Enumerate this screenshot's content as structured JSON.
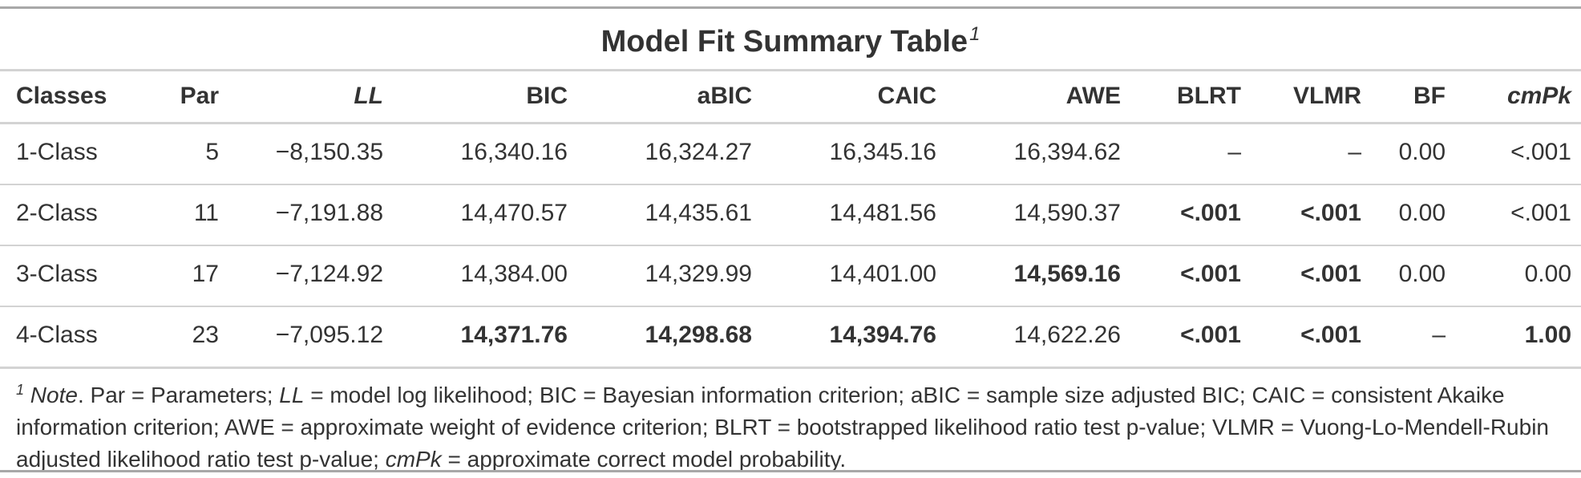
{
  "title": "Model Fit Summary Table",
  "title_footnote_mark": "1",
  "columns": [
    "Classes",
    "Par",
    "LL",
    "BIC",
    "aBIC",
    "CAIC",
    "AWE",
    "BLRT",
    "VLMR",
    "BF",
    "cmPk"
  ],
  "rows": [
    {
      "classes": "1-Class",
      "par": "5",
      "ll": "−8,150.35",
      "bic": "16,340.16",
      "abic": "16,324.27",
      "caic": "16,345.16",
      "awe": "16,394.62",
      "blrt": "–",
      "vlmr": "–",
      "bf": "0.00",
      "cmpk": "<.001"
    },
    {
      "classes": "2-Class",
      "par": "11",
      "ll": "−7,191.88",
      "bic": "14,470.57",
      "abic": "14,435.61",
      "caic": "14,481.56",
      "awe": "14,590.37",
      "blrt": "<.001",
      "vlmr": "<.001",
      "bf": "0.00",
      "cmpk": "<.001"
    },
    {
      "classes": "3-Class",
      "par": "17",
      "ll": "−7,124.92",
      "bic": "14,384.00",
      "abic": "14,329.99",
      "caic": "14,401.00",
      "awe": "14,569.16",
      "blrt": "<.001",
      "vlmr": "<.001",
      "bf": "0.00",
      "cmpk": "0.00"
    },
    {
      "classes": "4-Class",
      "par": "23",
      "ll": "−7,095.12",
      "bic": "14,371.76",
      "abic": "14,298.68",
      "caic": "14,394.76",
      "awe": "14,622.26",
      "blrt": "<.001",
      "vlmr": "<.001",
      "bf": "–",
      "cmpk": "1.00"
    }
  ],
  "note": {
    "mark": "1",
    "note_label": "Note",
    "p1": ". Par = Parameters; ",
    "ll_label": "LL",
    "p2": " = model log likelihood; BIC = Bayesian information criterion; aBIC = sample size adjusted BIC; CAIC = consistent Akaike information criterion; AWE = approximate weight of evidence criterion; BLRT = bootstrapped likelihood ratio test p-value; VLMR = Vuong-Lo-Mendell-Rubin adjusted likelihood ratio test p-value; ",
    "cmpk_label": "cmPk",
    "p3": " = approximate correct model probability."
  }
}
